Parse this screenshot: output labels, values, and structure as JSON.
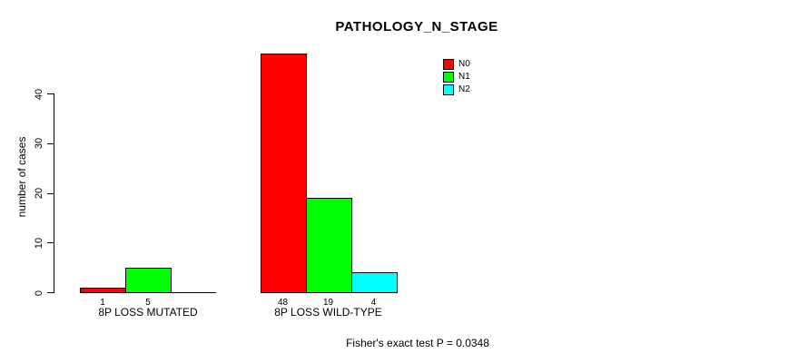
{
  "chart_data": {
    "type": "bar",
    "title": "PATHOLOGY_N_STAGE",
    "xlabel": "",
    "ylabel": "number of cases",
    "categories": [
      "8P LOSS MUTATED",
      "8P LOSS WILD-TYPE"
    ],
    "series": [
      {
        "name": "N0",
        "color": "#FF0000",
        "values": [
          1,
          48
        ]
      },
      {
        "name": "N1",
        "color": "#00FF00",
        "values": [
          5,
          19
        ]
      },
      {
        "name": "N2",
        "color": "#00FFFF",
        "values": [
          0,
          4
        ]
      }
    ],
    "bar_value_labels": [
      [
        "1",
        "5",
        ""
      ],
      [
        "48",
        "19",
        "4"
      ]
    ],
    "yticks": [
      0,
      10,
      20,
      30,
      40
    ],
    "ylim": [
      0,
      48
    ],
    "grid": false,
    "legend_position": "top-right",
    "annotation": "Fisher's exact test P = 0.0348"
  }
}
